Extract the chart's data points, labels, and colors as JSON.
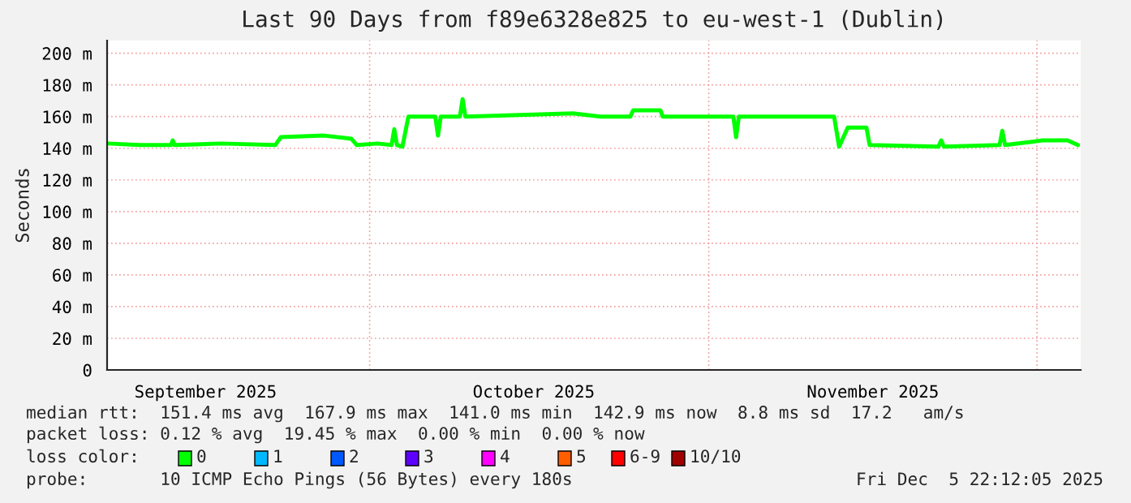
{
  "chart_data": {
    "type": "line",
    "title": "Last 90 Days from f89e6328e825 to eu-west-1 (Dublin)",
    "ylabel": "Seconds",
    "xlim": [
      "2025-09-07",
      "2025-12-05"
    ],
    "xticks": [
      {
        "value": "2025-09-16",
        "label": "September 2025"
      },
      {
        "value": "2025-10-01",
        "label": null
      },
      {
        "value": "2025-10-16",
        "label": "October 2025"
      },
      {
        "value": "2025-11-01",
        "label": null
      },
      {
        "value": "2025-11-16",
        "label": "November 2025"
      },
      {
        "value": "2025-12-01",
        "label": null
      }
    ],
    "ylim": [
      0,
      208
    ],
    "yticks": [
      0,
      {
        "value": 20,
        "label": "20 m"
      },
      {
        "value": 40,
        "label": "40 m"
      },
      {
        "value": 60,
        "label": "60 m"
      },
      {
        "value": 80,
        "label": "80 m"
      },
      {
        "value": 100,
        "label": "100 m"
      },
      {
        "value": 120,
        "label": "120 m"
      },
      {
        "value": 140,
        "label": "140 m"
      },
      {
        "value": 160,
        "label": "160 m"
      },
      {
        "value": 180,
        "label": "180 m"
      },
      {
        "value": 200,
        "label": "200 m"
      }
    ],
    "grid": true,
    "marker": "none",
    "line_style": "solid",
    "series": [
      {
        "color": "#00ff00",
        "x": [
          "2025-09-07T02:00",
          "2025-09-10",
          "2025-09-12T20:00",
          "2025-09-13",
          "2025-09-13T04:00",
          "2025-09-17T10:00",
          "2025-09-22T09:00",
          "2025-09-22T21:00",
          "2025-09-26T20:00",
          "2025-09-29T08:00",
          "2025-09-29T20:00",
          "2025-10-01T18:00",
          "2025-10-03",
          "2025-10-03T06:00",
          "2025-10-03T12:00",
          "2025-10-04",
          "2025-10-04T13:00",
          "2025-10-07",
          "2025-10-07T06:00",
          "2025-10-07T12:00",
          "2025-10-09T06:00",
          "2025-10-09T12:00",
          "2025-10-09T18:00",
          "2025-10-19T14:00",
          "2025-10-22T03:00",
          "2025-10-24T20:00",
          "2025-10-25T02:00",
          "2025-10-27T14:00",
          "2025-10-27T19:00",
          "2025-11-03T06:00",
          "2025-11-03T12:00",
          "2025-11-03T18:00",
          "2025-11-12T11:00",
          "2025-11-12T22:00",
          "2025-11-13T17:00",
          "2025-11-15T10:00",
          "2025-11-15T17:00",
          "2025-11-22",
          "2025-11-22T06:00",
          "2025-11-22T12:00",
          "2025-11-27T14:00",
          "2025-11-27T20:00",
          "2025-11-28T02:00",
          "2025-12-01T13:00",
          "2025-12-03T19:00",
          "2025-12-04T18:00"
        ],
        "values": [
          143,
          142,
          142,
          145,
          142,
          143,
          142,
          147,
          148,
          146,
          142,
          143,
          142,
          152,
          142,
          141,
          160,
          160,
          148,
          160,
          160,
          171,
          160,
          162,
          160,
          160,
          164,
          164,
          160,
          160,
          147,
          160,
          160,
          141,
          153,
          153,
          142,
          141,
          145,
          141,
          142,
          151,
          142,
          145,
          145,
          142
        ]
      }
    ],
    "annotations": [
      "median rtt:  151.4 ms avg  167.9 ms max  141.0 ms min  142.9 ms now  8.8 ms sd  17.2   am/s",
      "packet loss: 0.12 % avg  19.45 % max  0.00 % min  0.00 % now",
      "loss color:",
      "0",
      "1",
      "2",
      "3",
      "4",
      "5",
      "6-9",
      "10/10",
      "probe:       10 ICMP Echo Pings (56 Bytes) every 180s",
      "Fri Dec  5 22:12:05 2025"
    ]
  }
}
